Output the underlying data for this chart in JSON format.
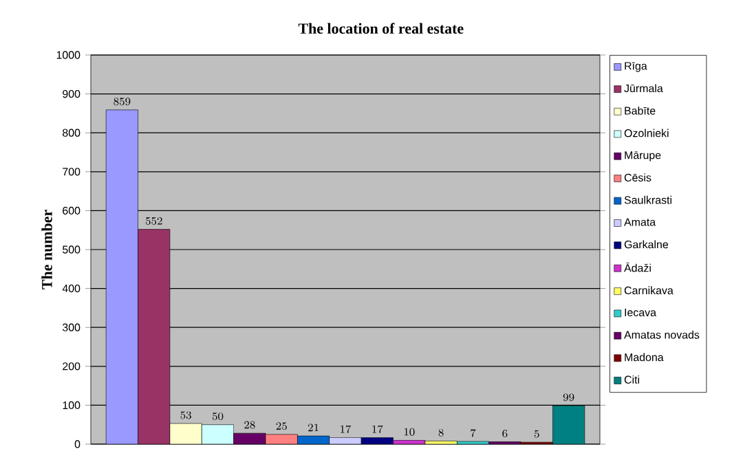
{
  "chart_data": {
    "type": "bar",
    "title": "The location of real estate",
    "ylabel": "The number",
    "categories": [
      null
    ],
    "ylim": [
      0,
      1000
    ],
    "yticks": [
      0,
      100,
      200,
      300,
      400,
      500,
      600,
      700,
      800,
      900,
      1000
    ],
    "grid": "y",
    "legend": "right",
    "data_labels": true,
    "series": [
      {
        "name": "Rīga",
        "color": "#9999ff",
        "values": [
          859
        ]
      },
      {
        "name": "Jūrmala",
        "color": "#993366",
        "values": [
          552
        ]
      },
      {
        "name": "Babīte",
        "color": "#ffffcc",
        "values": [
          53
        ]
      },
      {
        "name": "Ozolnieki",
        "color": "#ccffff",
        "values": [
          50
        ]
      },
      {
        "name": "Mārupe",
        "color": "#660066",
        "values": [
          28
        ]
      },
      {
        "name": "Cēsis",
        "color": "#ff8080",
        "values": [
          25
        ]
      },
      {
        "name": "Saulkrasti",
        "color": "#0066cc",
        "values": [
          21
        ]
      },
      {
        "name": "Amata",
        "color": "#ccccff",
        "values": [
          17
        ]
      },
      {
        "name": "Garkalne",
        "color": "#000080",
        "values": [
          17
        ]
      },
      {
        "name": "Ādaži",
        "color": "#cc33cc",
        "values": [
          10
        ]
      },
      {
        "name": "Carnikava",
        "color": "#ffff66",
        "values": [
          8
        ]
      },
      {
        "name": "Iecava",
        "color": "#33cccc",
        "values": [
          7
        ]
      },
      {
        "name": "Amatas novads",
        "color": "#660066",
        "values": [
          6
        ]
      },
      {
        "name": "Madona",
        "color": "#800000",
        "values": [
          5
        ]
      },
      {
        "name": "Citi",
        "color": "#008080",
        "values": [
          99
        ]
      }
    ]
  }
}
